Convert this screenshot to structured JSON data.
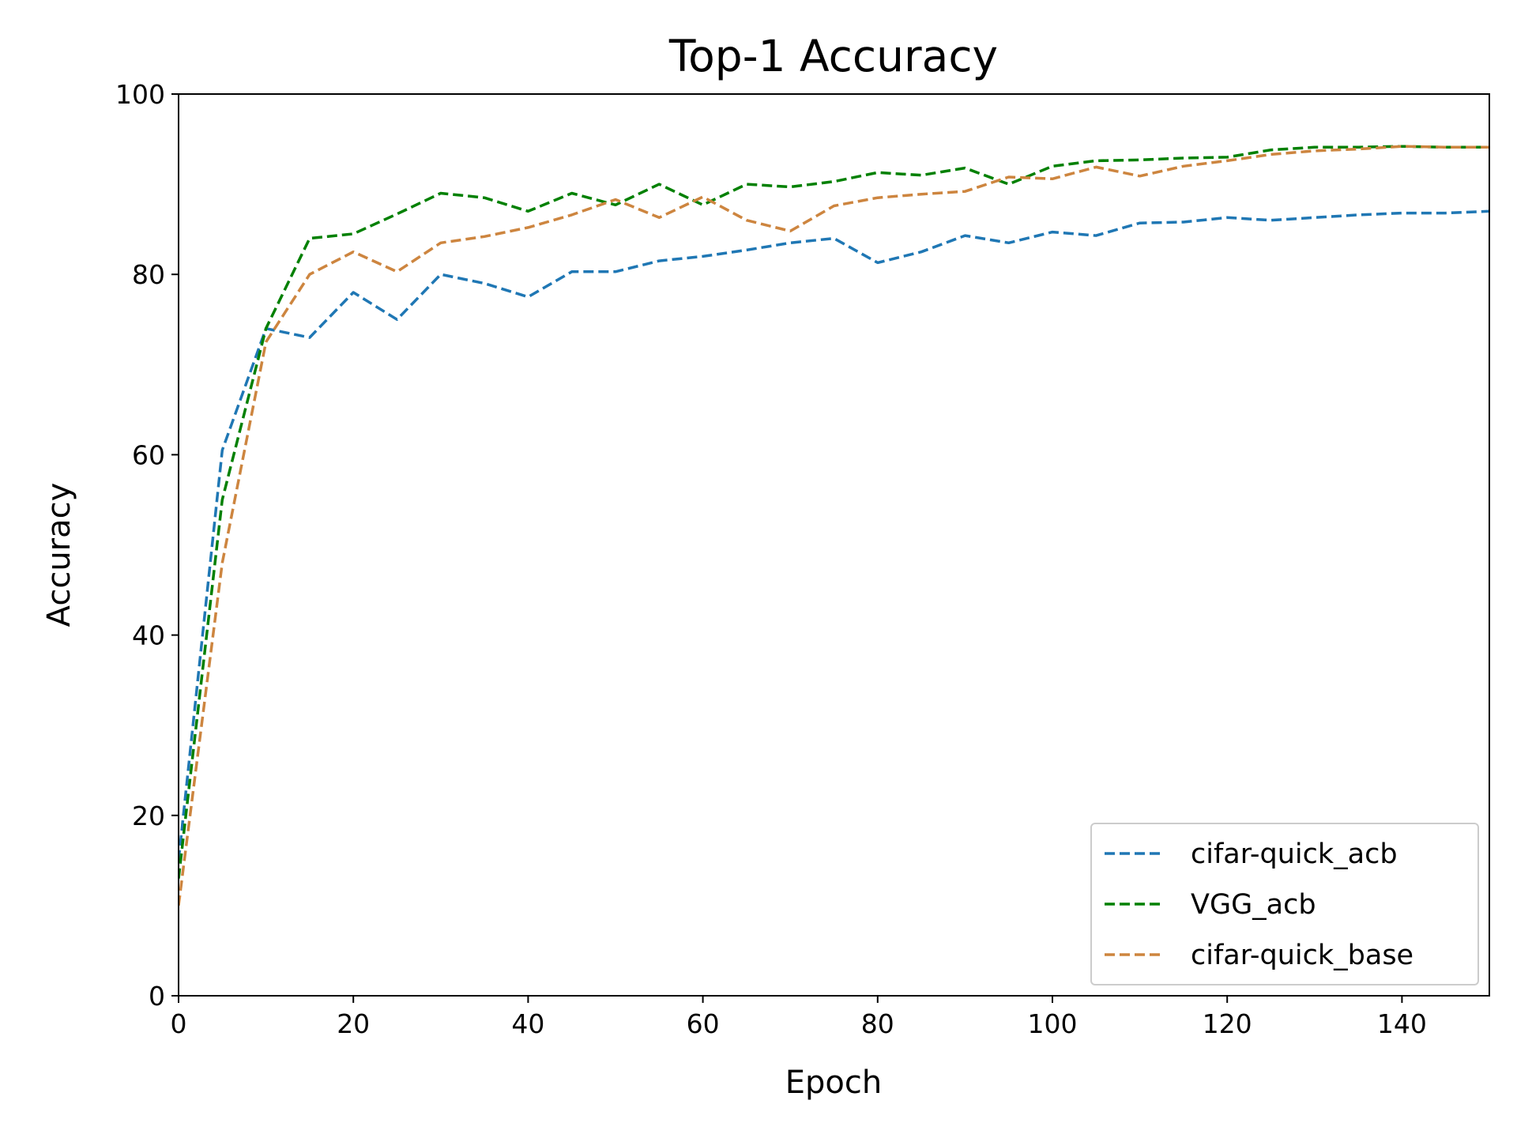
{
  "chart_data": {
    "type": "line",
    "title": "Top-1 Accuracy",
    "xlabel": "Epoch",
    "ylabel": "Accuracy",
    "xlim": [
      0,
      150
    ],
    "ylim": [
      0,
      100
    ],
    "xticks": [
      0,
      20,
      40,
      60,
      80,
      100,
      120,
      140
    ],
    "yticks": [
      0,
      20,
      40,
      60,
      80,
      100
    ],
    "grid": false,
    "legend_position": "lower-right",
    "line_style": "dashed",
    "series": [
      {
        "name": "cifar-quick_acb",
        "color": "#1f77b4",
        "x": [
          0,
          5,
          10,
          15,
          20,
          25,
          30,
          35,
          40,
          45,
          50,
          55,
          60,
          65,
          70,
          75,
          80,
          85,
          90,
          95,
          100,
          105,
          110,
          115,
          120,
          125,
          130,
          135,
          140,
          145,
          150
        ],
        "y": [
          15,
          60.5,
          74,
          73,
          78,
          75,
          80,
          79,
          77.5,
          80.3,
          80.3,
          81.5,
          82,
          82.7,
          83.5,
          84,
          81.3,
          82.5,
          84.3,
          83.5,
          84.7,
          84.3,
          85.7,
          85.8,
          86.3,
          86,
          86.3,
          86.6,
          86.8,
          86.8,
          87
        ]
      },
      {
        "name": "VGG_acb",
        "color": "#008000",
        "x": [
          0,
          5,
          10,
          15,
          20,
          25,
          30,
          35,
          40,
          45,
          50,
          55,
          60,
          65,
          70,
          75,
          80,
          85,
          90,
          95,
          100,
          105,
          110,
          115,
          120,
          125,
          130,
          135,
          140,
          145,
          150
        ],
        "y": [
          13,
          55,
          74,
          84,
          84.5,
          86.7,
          89,
          88.5,
          87,
          89,
          87.7,
          90,
          87.7,
          90,
          89.7,
          90.3,
          91.3,
          91,
          91.8,
          90,
          92,
          92.6,
          92.7,
          92.9,
          93,
          93.8,
          94.1,
          94.1,
          94.2,
          94.1,
          94.1
        ]
      },
      {
        "name": "cifar-quick_base",
        "color": "#cd853f",
        "x": [
          0,
          5,
          10,
          15,
          20,
          25,
          30,
          35,
          40,
          45,
          50,
          55,
          60,
          65,
          70,
          75,
          80,
          85,
          90,
          95,
          100,
          105,
          110,
          115,
          120,
          125,
          130,
          135,
          140,
          145,
          150
        ],
        "y": [
          10,
          48,
          72.5,
          80,
          82.5,
          80.3,
          83.5,
          84.2,
          85.2,
          86.6,
          88.3,
          86.3,
          88.6,
          86,
          84.8,
          87.6,
          88.5,
          88.9,
          89.2,
          90.8,
          90.6,
          91.9,
          90.9,
          92,
          92.6,
          93.3,
          93.7,
          93.9,
          94.2,
          94.1,
          94.1
        ]
      }
    ]
  }
}
